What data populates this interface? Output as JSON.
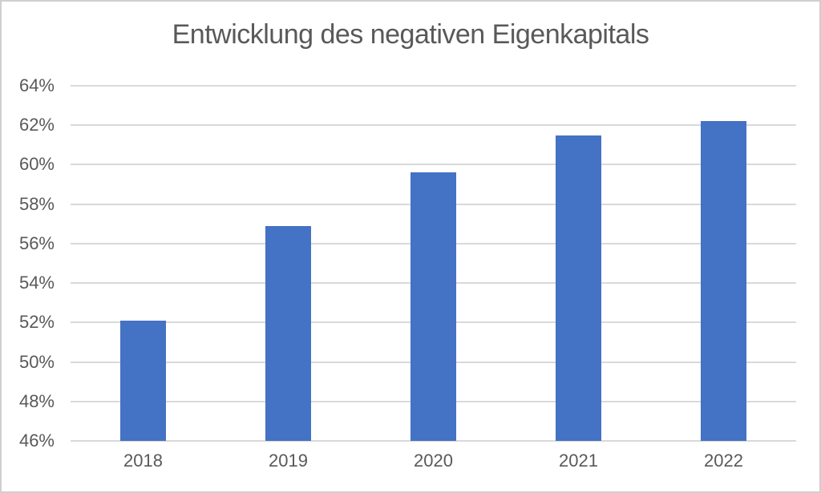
{
  "chart_data": {
    "type": "bar",
    "title": "Entwicklung des negativen Eigenkapitals",
    "categories": [
      "2018",
      "2019",
      "2020",
      "2021",
      "2022"
    ],
    "values": [
      52.1,
      56.9,
      59.6,
      61.5,
      62.2
    ],
    "unit": "%",
    "xlabel": "",
    "ylabel": "",
    "ylim": [
      46,
      64
    ],
    "ytick_step": 2,
    "ytick_labels": [
      "46%",
      "48%",
      "50%",
      "52%",
      "54%",
      "56%",
      "58%",
      "60%",
      "62%",
      "64%"
    ],
    "grid": "horizontal-on",
    "legend": "none",
    "colors": {
      "bar": "#4472C4",
      "gridline": "#d9d9d9",
      "text": "#595959",
      "background": "#ffffff",
      "frame_border": "#cfcfcf"
    }
  }
}
